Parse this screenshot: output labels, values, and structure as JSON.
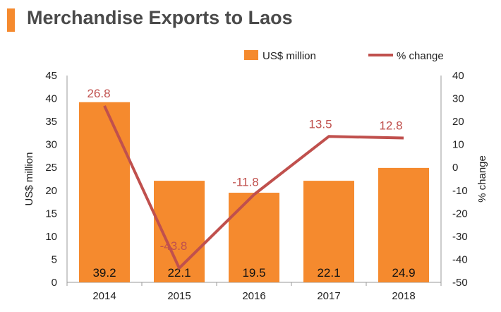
{
  "chart_data": {
    "type": "bar",
    "title": "Merchandise Exports to Laos",
    "categories": [
      "2014",
      "2015",
      "2016",
      "2017",
      "2018"
    ],
    "series": [
      {
        "name": "US$ million",
        "type": "bar",
        "axis": "left",
        "values": [
          39.2,
          22.1,
          19.5,
          22.1,
          24.9
        ],
        "labels": [
          "39.2",
          "22.1",
          "19.5",
          "22.1",
          "24.9"
        ]
      },
      {
        "name": "% change",
        "type": "line",
        "axis": "right",
        "values": [
          26.8,
          -43.8,
          -11.8,
          13.5,
          12.8
        ],
        "labels": [
          "26.8",
          "-43.8",
          "-11.8",
          "13.5",
          "12.8"
        ]
      }
    ],
    "ylabel": "US$ million",
    "y2label": "% change",
    "ylim": [
      0,
      45
    ],
    "y2lim": [
      -50,
      40
    ],
    "yticks": [
      "0",
      "5",
      "10",
      "15",
      "20",
      "25",
      "30",
      "35",
      "40",
      "45"
    ],
    "y2ticks": [
      "-50",
      "-40",
      "-30",
      "-20",
      "-10",
      "0",
      "10",
      "20",
      "30",
      "40"
    ],
    "grid": false,
    "legend": "top-right",
    "colors": {
      "bar": "#F58A2E",
      "line": "#C0504D",
      "accent": "#F58A2E",
      "title": "#4a4a4a"
    }
  }
}
